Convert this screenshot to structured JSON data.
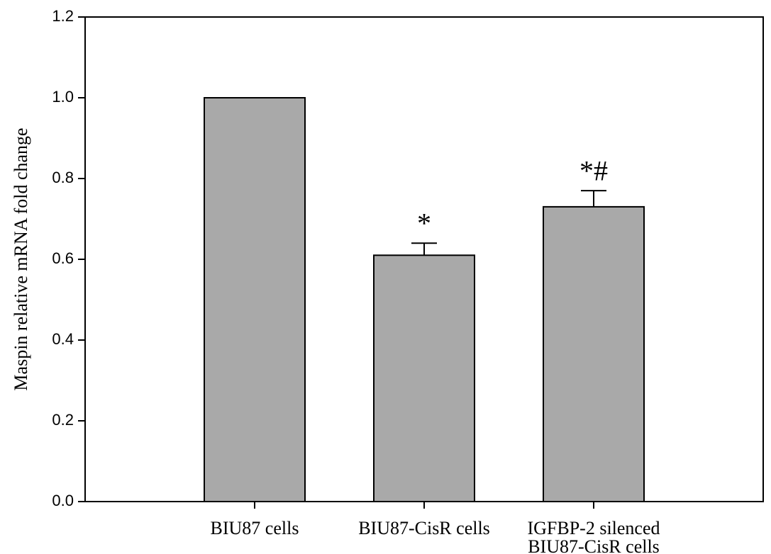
{
  "chart_data": {
    "type": "bar",
    "ylabel": "Maspin relative mRNA  fold change",
    "categories": [
      "BIU87 cells",
      "BIU87-CisR cells",
      "IGFBP-2 silenced\nBIU87-CisR cells"
    ],
    "values": [
      1.0,
      0.61,
      0.73
    ],
    "errors": [
      null,
      0.03,
      0.04
    ],
    "annotations": [
      null,
      "*",
      "*#"
    ],
    "color": "#a9a9a9",
    "ylim": [
      0,
      1.2
    ],
    "yticks": [
      {
        "value": 0,
        "label": "0.0"
      },
      0.2,
      0.4,
      0.6,
      0.8,
      {
        "value": 1,
        "label": "1.0"
      },
      1.2
    ],
    "grid": false
  }
}
